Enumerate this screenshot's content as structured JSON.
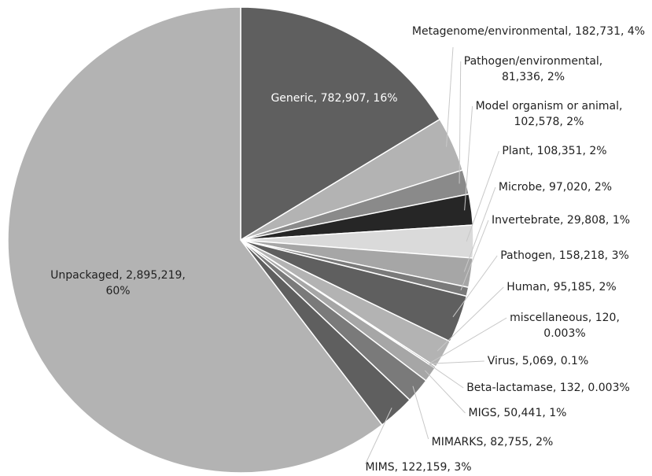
{
  "chart_data": {
    "type": "pie",
    "categories": [
      "Generic",
      "Metagenome/environmental",
      "Pathogen/environmental",
      "Model organism or animal",
      "Plant",
      "Microbe",
      "Invertebrate",
      "Pathogen",
      "Human",
      "miscellaneous",
      "Virus",
      "Beta-lactamase",
      "MIGS",
      "MIMARKS",
      "MIMS",
      "Unpackaged"
    ],
    "values": [
      782907,
      182731,
      81336,
      102578,
      108351,
      97020,
      29808,
      158218,
      95185,
      120,
      5069,
      132,
      50441,
      82755,
      122159,
      2895219
    ],
    "labels": [
      [
        "Generic, 782,907, 16%"
      ],
      [
        "Metagenome/environmental, 182,731, 4%"
      ],
      [
        "Pathogen/environmental,",
        "81,336, 2%"
      ],
      [
        "Model organism or animal,",
        "102,578, 2%"
      ],
      [
        "Plant, 108,351, 2%"
      ],
      [
        "Microbe, 97,020, 2%"
      ],
      [
        "Invertebrate, 29,808, 1%"
      ],
      [
        "Pathogen, 158,218, 3%"
      ],
      [
        "Human, 95,185, 2%"
      ],
      [
        "miscellaneous, 120,",
        "0.003%"
      ],
      [
        "Virus, 5,069, 0.1%"
      ],
      [
        "Beta-lactamase, 132, 0.003%"
      ],
      [
        "MIGS, 50,441, 1%"
      ],
      [
        "MIMARKS, 82,755, 2%"
      ],
      [
        "MIMS, 122,159, 3%"
      ],
      [
        "Unpackaged, 2,895,219,",
        "60%"
      ]
    ],
    "colors": [
      "#5f5f5f",
      "#b3b3b3",
      "#8a8a8a",
      "#262626",
      "#dadada",
      "#a6a6a6",
      "#7a7a7a",
      "#5f5f5f",
      "#b3b3b3",
      "#8a8a8a",
      "#262626",
      "#dadada",
      "#a6a6a6",
      "#7a7a7a",
      "#5f5f5f",
      "#b3b3b3"
    ]
  }
}
